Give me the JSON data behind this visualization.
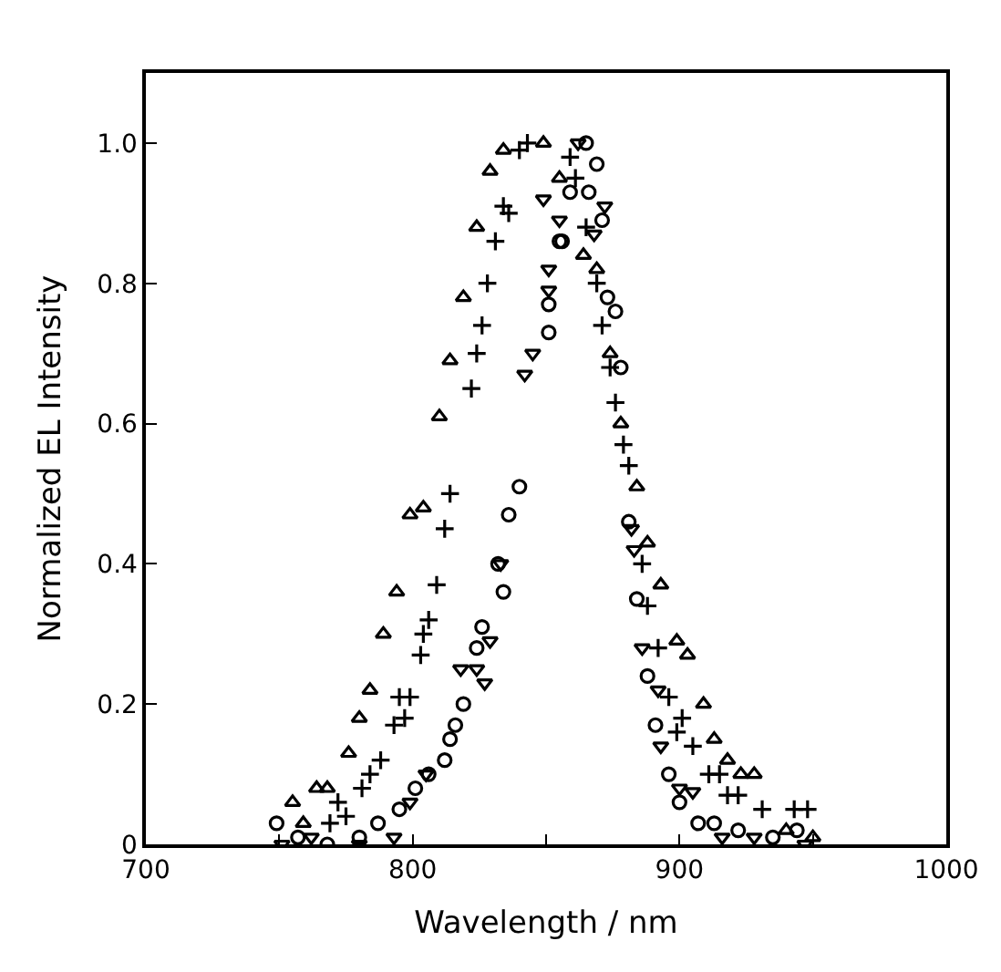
{
  "chart_data": {
    "type": "scatter",
    "xlabel": "Wavelength / nm",
    "ylabel": "Normalized EL Intensity",
    "xlim": [
      700,
      1000
    ],
    "ylim": [
      0,
      1.1
    ],
    "xticks": [
      700,
      {
        "value": 750,
        "label": null
      },
      800,
      {
        "value": 850,
        "label": null
      },
      900,
      {
        "value": 950,
        "label": null
      },
      1000
    ],
    "yticks": [
      0,
      0.2,
      0.4,
      0.6,
      0.8,
      {
        "value": 1.0,
        "label": "1.0"
      }
    ],
    "series": [
      {
        "color": "#000000",
        "marker": "triangle",
        "x": [
          755,
          759,
          764,
          768,
          776,
          780,
          784,
          789,
          794,
          799,
          804,
          810,
          814,
          819,
          824,
          829,
          834,
          849,
          855,
          864,
          869,
          874,
          878,
          884,
          888,
          893,
          899,
          903,
          909,
          913,
          918,
          923,
          928,
          940,
          950
        ],
        "values": [
          0.06,
          0.03,
          0.08,
          0.08,
          0.13,
          0.18,
          0.22,
          0.3,
          0.36,
          0.47,
          0.48,
          0.61,
          0.69,
          0.78,
          0.88,
          0.96,
          0.99,
          1.0,
          0.95,
          0.84,
          0.82,
          0.7,
          0.6,
          0.51,
          0.43,
          0.37,
          0.29,
          0.27,
          0.2,
          0.15,
          0.12,
          0.1,
          0.1,
          0.02,
          0.01
        ]
      },
      {
        "color": "#000000",
        "marker": "cross",
        "x": [
          769,
          772,
          775,
          781,
          784,
          788,
          793,
          795,
          797,
          799,
          803,
          804,
          806,
          809,
          812,
          814,
          822,
          824,
          826,
          828,
          831,
          834,
          836,
          840,
          843,
          859,
          861,
          865,
          869,
          871,
          874,
          876,
          879,
          881,
          886,
          888,
          892,
          896,
          899,
          901,
          905,
          911,
          915,
          918,
          922,
          931,
          943,
          948
        ],
        "values": [
          0.03,
          0.06,
          0.04,
          0.08,
          0.1,
          0.12,
          0.17,
          0.21,
          0.18,
          0.21,
          0.27,
          0.3,
          0.32,
          0.37,
          0.45,
          0.5,
          0.65,
          0.7,
          0.74,
          0.8,
          0.86,
          0.91,
          0.9,
          0.99,
          1.0,
          0.98,
          0.95,
          0.88,
          0.8,
          0.74,
          0.68,
          0.63,
          0.57,
          0.54,
          0.4,
          0.34,
          0.28,
          0.21,
          0.16,
          0.18,
          0.14,
          0.1,
          0.1,
          0.07,
          0.07,
          0.05,
          0.05,
          0.05
        ]
      },
      {
        "color": "#000000",
        "marker": "circle",
        "x": [
          749,
          757,
          768,
          780,
          787,
          795,
          801,
          806,
          812,
          814,
          816,
          819,
          824,
          826,
          832,
          834,
          836,
          840,
          851,
          851,
          855,
          856,
          859,
          865,
          866,
          869,
          871,
          873,
          876,
          878,
          881,
          884,
          888,
          891,
          896,
          900,
          907,
          913,
          922,
          935,
          944
        ],
        "values": [
          0.03,
          0.01,
          0.0,
          0.01,
          0.03,
          0.05,
          0.08,
          0.1,
          0.12,
          0.15,
          0.17,
          0.2,
          0.28,
          0.31,
          0.4,
          0.36,
          0.47,
          0.51,
          0.73,
          0.77,
          0.86,
          0.86,
          0.93,
          1.0,
          0.93,
          0.97,
          0.89,
          0.78,
          0.76,
          0.68,
          0.46,
          0.35,
          0.24,
          0.17,
          0.1,
          0.06,
          0.03,
          0.03,
          0.02,
          0.01,
          0.02
        ]
      },
      {
        "color": "#000000",
        "marker": "triangle-down",
        "x": [
          751,
          762,
          780,
          793,
          799,
          805,
          818,
          824,
          827,
          829,
          833,
          842,
          845,
          849,
          851,
          851,
          855,
          862,
          868,
          872,
          882,
          883,
          886,
          892,
          893,
          900,
          905,
          916,
          928,
          947
        ],
        "values": [
          0.0,
          0.01,
          0.0,
          0.01,
          0.06,
          0.1,
          0.25,
          0.25,
          0.23,
          0.29,
          0.4,
          0.67,
          0.7,
          0.92,
          0.79,
          0.82,
          0.89,
          1.0,
          0.87,
          0.91,
          0.45,
          0.42,
          0.28,
          0.22,
          0.14,
          0.08,
          0.075,
          0.01,
          0.01,
          0.0
        ]
      }
    ]
  }
}
